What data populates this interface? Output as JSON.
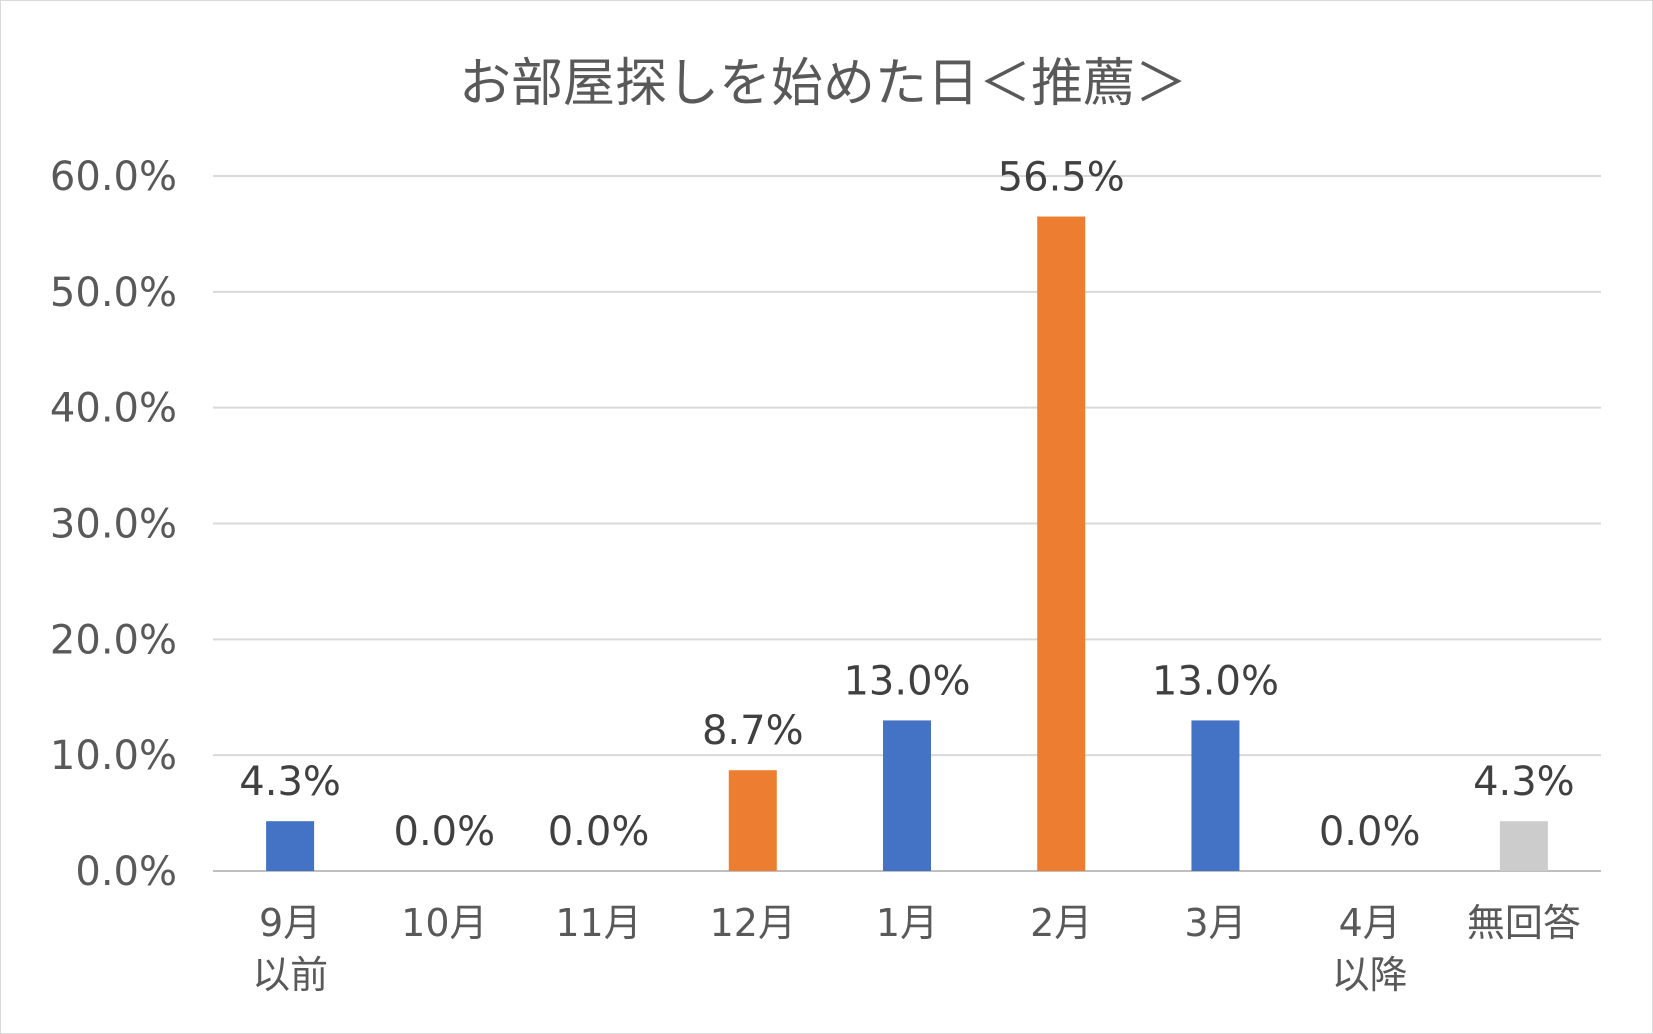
{
  "chart_data": {
    "type": "bar",
    "title": "お部屋探しを始めた日＜推薦＞",
    "xlabel": "",
    "ylabel": "",
    "ylim": [
      0,
      60
    ],
    "yticks": [
      "0.0%",
      "10.0%",
      "20.0%",
      "30.0%",
      "40.0%",
      "50.0%",
      "60.0%"
    ],
    "grid": true,
    "legend": "none",
    "categories": [
      [
        "9月",
        "以前"
      ],
      [
        "10月"
      ],
      [
        "11月"
      ],
      [
        "12月"
      ],
      [
        "1月"
      ],
      [
        "2月"
      ],
      [
        "3月"
      ],
      [
        "4月",
        "以降"
      ],
      [
        "無回答"
      ]
    ],
    "values": [
      4.3,
      0.0,
      0.0,
      8.7,
      13.0,
      56.5,
      13.0,
      0.0,
      4.3
    ],
    "labels": [
      "4.3%",
      "0.0%",
      "0.0%",
      "8.7%",
      "13.0%",
      "56.5%",
      "13.0%",
      "0.0%",
      "4.3%"
    ],
    "colors": [
      "#4472c4",
      "#4472c4",
      "#4472c4",
      "#ed7d31",
      "#4472c4",
      "#ed7d31",
      "#4472c4",
      "#4472c4",
      "#cccccc"
    ]
  }
}
